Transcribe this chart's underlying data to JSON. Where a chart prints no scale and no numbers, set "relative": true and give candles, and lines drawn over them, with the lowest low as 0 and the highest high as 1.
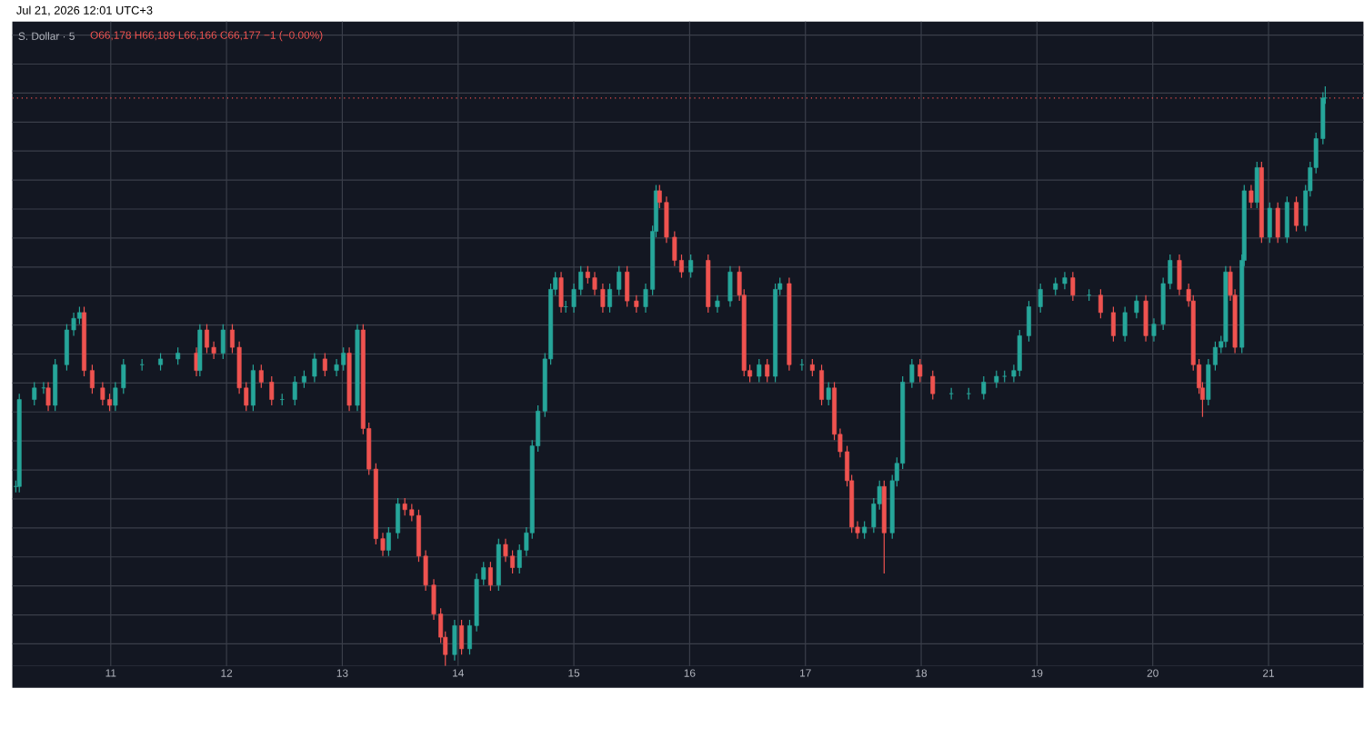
{
  "chart_data": {
    "type": "candlestick",
    "title": "S. Dollar · 5",
    "relative": true,
    "grid": true,
    "tick_labels": "x",
    "annotations": [
      "Jul 21, 2026 12:01 UTC+3",
      "O66,178 H66,189 L66,166 C66,177 −1 (−0.00%)"
    ],
    "xlim": [
      10.15,
      21.82
    ],
    "xticks": [
      11,
      12,
      13,
      14,
      15,
      16,
      17,
      18,
      19,
      20,
      21
    ],
    "ref_lines": [
      {
        "axis": "y",
        "value": 0.98,
        "color": "#ef5350",
        "line_style": "dotted"
      }
    ],
    "x": [
      10.18,
      10.21,
      10.34,
      10.42,
      10.46,
      10.52,
      10.62,
      10.68,
      10.73,
      10.77,
      10.84,
      10.93,
      10.99,
      11.04,
      11.11,
      11.27,
      11.43,
      11.58,
      11.74,
      11.77,
      11.83,
      11.89,
      11.97,
      12.05,
      12.11,
      12.17,
      12.23,
      12.3,
      12.39,
      12.48,
      12.59,
      12.67,
      12.76,
      12.85,
      12.95,
      13.01,
      13.06,
      13.13,
      13.18,
      13.23,
      13.29,
      13.35,
      13.4,
      13.48,
      13.54,
      13.6,
      13.66,
      13.72,
      13.79,
      13.85,
      13.89,
      13.97,
      14.03,
      14.1,
      14.16,
      14.22,
      14.28,
      14.35,
      14.41,
      14.47,
      14.53,
      14.59,
      14.64,
      14.69,
      14.75,
      14.8,
      14.84,
      14.89,
      14.93,
      15.0,
      15.06,
      15.12,
      15.18,
      15.25,
      15.31,
      15.39,
      15.46,
      15.54,
      15.62,
      15.68,
      15.71,
      15.74,
      15.8,
      15.87,
      15.93,
      16.01,
      16.16,
      16.24,
      16.35,
      16.43,
      16.47,
      16.52,
      16.6,
      16.67,
      16.74,
      16.78,
      16.86,
      16.97,
      17.06,
      17.14,
      17.2,
      17.25,
      17.3,
      17.36,
      17.4,
      17.45,
      17.51,
      17.59,
      17.64,
      17.68,
      17.75,
      17.79,
      17.84,
      17.92,
      17.99,
      18.1,
      18.26,
      18.41,
      18.54,
      18.65,
      18.72,
      18.8,
      18.85,
      18.93,
      19.03,
      19.16,
      19.24,
      19.31,
      19.45,
      19.55,
      19.66,
      19.76,
      19.86,
      19.94,
      20.01,
      20.09,
      20.15,
      20.23,
      20.31,
      20.35,
      20.4,
      20.43,
      20.48,
      20.54,
      20.59,
      20.63,
      20.67,
      20.71,
      20.77,
      20.79,
      20.85,
      20.9,
      20.94,
      21.01,
      21.08,
      21.16,
      21.24,
      21.32,
      21.36,
      21.41,
      21.47,
      21.49
    ],
    "ohlc": [
      [
        0.31,
        0.32,
        0.3,
        0.31
      ],
      [
        0.31,
        0.47,
        0.3,
        0.46
      ],
      [
        0.46,
        0.49,
        0.45,
        0.48
      ],
      [
        0.48,
        0.49,
        0.47,
        0.48
      ],
      [
        0.48,
        0.49,
        0.44,
        0.45
      ],
      [
        0.45,
        0.53,
        0.44,
        0.52
      ],
      [
        0.52,
        0.59,
        0.51,
        0.58
      ],
      [
        0.58,
        0.61,
        0.57,
        0.6
      ],
      [
        0.6,
        0.62,
        0.59,
        0.61
      ],
      [
        0.61,
        0.62,
        0.5,
        0.51
      ],
      [
        0.51,
        0.52,
        0.47,
        0.48
      ],
      [
        0.48,
        0.49,
        0.45,
        0.46
      ],
      [
        0.46,
        0.47,
        0.44,
        0.45
      ],
      [
        0.45,
        0.49,
        0.44,
        0.48
      ],
      [
        0.48,
        0.53,
        0.47,
        0.52
      ],
      [
        0.52,
        0.53,
        0.51,
        0.52
      ],
      [
        0.52,
        0.54,
        0.51,
        0.53
      ],
      [
        0.53,
        0.55,
        0.52,
        0.54
      ],
      [
        0.54,
        0.55,
        0.5,
        0.51
      ],
      [
        0.51,
        0.59,
        0.5,
        0.58
      ],
      [
        0.58,
        0.59,
        0.54,
        0.55
      ],
      [
        0.55,
        0.56,
        0.53,
        0.54
      ],
      [
        0.54,
        0.59,
        0.53,
        0.58
      ],
      [
        0.58,
        0.59,
        0.54,
        0.55
      ],
      [
        0.55,
        0.56,
        0.47,
        0.48
      ],
      [
        0.48,
        0.49,
        0.44,
        0.45
      ],
      [
        0.45,
        0.52,
        0.44,
        0.51
      ],
      [
        0.51,
        0.52,
        0.48,
        0.49
      ],
      [
        0.49,
        0.5,
        0.45,
        0.46
      ],
      [
        0.46,
        0.47,
        0.45,
        0.46
      ],
      [
        0.46,
        0.5,
        0.45,
        0.49
      ],
      [
        0.49,
        0.51,
        0.48,
        0.5
      ],
      [
        0.5,
        0.54,
        0.49,
        0.53
      ],
      [
        0.53,
        0.54,
        0.5,
        0.51
      ],
      [
        0.51,
        0.53,
        0.5,
        0.52
      ],
      [
        0.52,
        0.55,
        0.51,
        0.54
      ],
      [
        0.54,
        0.55,
        0.44,
        0.45
      ],
      [
        0.45,
        0.59,
        0.44,
        0.58
      ],
      [
        0.58,
        0.59,
        0.4,
        0.41
      ],
      [
        0.41,
        0.42,
        0.33,
        0.34
      ],
      [
        0.34,
        0.35,
        0.21,
        0.22
      ],
      [
        0.22,
        0.23,
        0.19,
        0.2
      ],
      [
        0.2,
        0.24,
        0.19,
        0.23
      ],
      [
        0.23,
        0.29,
        0.22,
        0.28
      ],
      [
        0.28,
        0.29,
        0.26,
        0.27
      ],
      [
        0.27,
        0.28,
        0.25,
        0.26
      ],
      [
        0.26,
        0.27,
        0.18,
        0.19
      ],
      [
        0.19,
        0.2,
        0.13,
        0.14
      ],
      [
        0.14,
        0.15,
        0.08,
        0.09
      ],
      [
        0.09,
        0.1,
        0.04,
        0.05
      ],
      [
        0.05,
        0.06,
        0,
        0.02
      ],
      [
        0.02,
        0.08,
        0.01,
        0.07
      ],
      [
        0.07,
        0.08,
        0.02,
        0.03
      ],
      [
        0.03,
        0.08,
        0.02,
        0.07
      ],
      [
        0.07,
        0.16,
        0.06,
        0.15
      ],
      [
        0.15,
        0.18,
        0.14,
        0.17
      ],
      [
        0.17,
        0.18,
        0.13,
        0.14
      ],
      [
        0.14,
        0.22,
        0.13,
        0.21
      ],
      [
        0.21,
        0.22,
        0.18,
        0.19
      ],
      [
        0.19,
        0.2,
        0.16,
        0.17
      ],
      [
        0.17,
        0.21,
        0.16,
        0.2
      ],
      [
        0.2,
        0.24,
        0.19,
        0.23
      ],
      [
        0.23,
        0.39,
        0.22,
        0.38
      ],
      [
        0.38,
        0.45,
        0.37,
        0.44
      ],
      [
        0.44,
        0.54,
        0.43,
        0.53
      ],
      [
        0.53,
        0.66,
        0.52,
        0.65
      ],
      [
        0.65,
        0.68,
        0.64,
        0.67
      ],
      [
        0.67,
        0.68,
        0.61,
        0.62
      ],
      [
        0.62,
        0.63,
        0.61,
        0.62
      ],
      [
        0.62,
        0.66,
        0.61,
        0.65
      ],
      [
        0.65,
        0.69,
        0.64,
        0.68
      ],
      [
        0.68,
        0.69,
        0.66,
        0.67
      ],
      [
        0.67,
        0.68,
        0.64,
        0.65
      ],
      [
        0.65,
        0.66,
        0.61,
        0.62
      ],
      [
        0.62,
        0.66,
        0.61,
        0.65
      ],
      [
        0.65,
        0.69,
        0.64,
        0.68
      ],
      [
        0.68,
        0.69,
        0.62,
        0.63
      ],
      [
        0.63,
        0.64,
        0.61,
        0.62
      ],
      [
        0.62,
        0.66,
        0.61,
        0.65
      ],
      [
        0.65,
        0.76,
        0.64,
        0.75
      ],
      [
        0.75,
        0.83,
        0.74,
        0.82
      ],
      [
        0.82,
        0.83,
        0.79,
        0.8
      ],
      [
        0.8,
        0.81,
        0.73,
        0.74
      ],
      [
        0.74,
        0.75,
        0.69,
        0.7
      ],
      [
        0.7,
        0.71,
        0.67,
        0.68
      ],
      [
        0.68,
        0.71,
        0.67,
        0.7
      ],
      [
        0.7,
        0.71,
        0.61,
        0.62
      ],
      [
        0.62,
        0.64,
        0.61,
        0.63
      ],
      [
        0.63,
        0.69,
        0.62,
        0.68
      ],
      [
        0.68,
        0.69,
        0.63,
        0.64
      ],
      [
        0.64,
        0.65,
        0.5,
        0.51
      ],
      [
        0.51,
        0.52,
        0.49,
        0.5
      ],
      [
        0.5,
        0.53,
        0.49,
        0.52
      ],
      [
        0.52,
        0.53,
        0.49,
        0.5
      ],
      [
        0.5,
        0.66,
        0.49,
        0.65
      ],
      [
        0.65,
        0.67,
        0.64,
        0.66
      ],
      [
        0.66,
        0.67,
        0.51,
        0.52
      ],
      [
        0.52,
        0.53,
        0.51,
        0.52
      ],
      [
        0.52,
        0.53,
        0.5,
        0.51
      ],
      [
        0.51,
        0.52,
        0.45,
        0.46
      ],
      [
        0.46,
        0.49,
        0.45,
        0.48
      ],
      [
        0.48,
        0.49,
        0.39,
        0.4
      ],
      [
        0.4,
        0.41,
        0.36,
        0.37
      ],
      [
        0.37,
        0.38,
        0.31,
        0.32
      ],
      [
        0.32,
        0.33,
        0.23,
        0.24
      ],
      [
        0.24,
        0.25,
        0.22,
        0.23
      ],
      [
        0.23,
        0.25,
        0.22,
        0.24
      ],
      [
        0.24,
        0.29,
        0.23,
        0.28
      ],
      [
        0.28,
        0.32,
        0.27,
        0.31
      ],
      [
        0.31,
        0.32,
        0.16,
        0.23
      ],
      [
        0.23,
        0.33,
        0.22,
        0.32
      ],
      [
        0.32,
        0.36,
        0.31,
        0.35
      ],
      [
        0.35,
        0.5,
        0.34,
        0.49
      ],
      [
        0.49,
        0.53,
        0.48,
        0.52
      ],
      [
        0.52,
        0.53,
        0.49,
        0.5
      ],
      [
        0.5,
        0.51,
        0.46,
        0.47
      ],
      [
        0.47,
        0.48,
        0.46,
        0.47
      ],
      [
        0.47,
        0.48,
        0.46,
        0.47
      ],
      [
        0.47,
        0.5,
        0.46,
        0.49
      ],
      [
        0.49,
        0.51,
        0.48,
        0.5
      ],
      [
        0.5,
        0.51,
        0.49,
        0.5
      ],
      [
        0.5,
        0.52,
        0.49,
        0.51
      ],
      [
        0.51,
        0.58,
        0.5,
        0.57
      ],
      [
        0.57,
        0.63,
        0.56,
        0.62
      ],
      [
        0.62,
        0.66,
        0.61,
        0.65
      ],
      [
        0.65,
        0.67,
        0.64,
        0.66
      ],
      [
        0.66,
        0.68,
        0.65,
        0.67
      ],
      [
        0.67,
        0.68,
        0.63,
        0.64
      ],
      [
        0.64,
        0.65,
        0.63,
        0.64
      ],
      [
        0.64,
        0.65,
        0.6,
        0.61
      ],
      [
        0.61,
        0.62,
        0.56,
        0.57
      ],
      [
        0.57,
        0.62,
        0.56,
        0.61
      ],
      [
        0.61,
        0.64,
        0.6,
        0.63
      ],
      [
        0.63,
        0.64,
        0.56,
        0.57
      ],
      [
        0.57,
        0.6,
        0.56,
        0.59
      ],
      [
        0.59,
        0.67,
        0.58,
        0.66
      ],
      [
        0.66,
        0.71,
        0.65,
        0.7
      ],
      [
        0.7,
        0.71,
        0.64,
        0.65
      ],
      [
        0.65,
        0.66,
        0.62,
        0.63
      ],
      [
        0.63,
        0.64,
        0.51,
        0.52
      ],
      [
        0.52,
        0.53,
        0.47,
        0.48
      ],
      [
        0.48,
        0.49,
        0.43,
        0.46
      ],
      [
        0.46,
        0.53,
        0.45,
        0.52
      ],
      [
        0.52,
        0.56,
        0.51,
        0.55
      ],
      [
        0.55,
        0.57,
        0.54,
        0.56
      ],
      [
        0.56,
        0.69,
        0.55,
        0.68
      ],
      [
        0.68,
        0.69,
        0.63,
        0.64
      ],
      [
        0.64,
        0.65,
        0.54,
        0.55
      ],
      [
        0.55,
        0.71,
        0.54,
        0.7
      ],
      [
        0.7,
        0.83,
        0.69,
        0.82
      ],
      [
        0.82,
        0.83,
        0.79,
        0.8
      ],
      [
        0.8,
        0.87,
        0.79,
        0.86
      ],
      [
        0.86,
        0.87,
        0.73,
        0.74
      ],
      [
        0.74,
        0.8,
        0.73,
        0.79
      ],
      [
        0.79,
        0.8,
        0.73,
        0.74
      ],
      [
        0.74,
        0.81,
        0.73,
        0.8
      ],
      [
        0.8,
        0.81,
        0.75,
        0.76
      ],
      [
        0.76,
        0.83,
        0.75,
        0.82
      ],
      [
        0.82,
        0.87,
        0.81,
        0.86
      ],
      [
        0.86,
        0.92,
        0.85,
        0.91
      ],
      [
        0.91,
        0.99,
        0.9,
        0.98
      ],
      [
        0.98,
        1,
        0.97,
        0.98
      ]
    ],
    "colors": [
      "#26a69a",
      "#26a69a",
      "#26a69a",
      "#26a69a",
      "#ef5350",
      "#26a69a",
      "#26a69a",
      "#26a69a",
      "#26a69a",
      "#ef5350",
      "#ef5350",
      "#ef5350",
      "#ef5350",
      "#26a69a",
      "#26a69a",
      "#26a69a",
      "#26a69a",
      "#26a69a",
      "#ef5350",
      "#26a69a",
      "#ef5350",
      "#ef5350",
      "#26a69a",
      "#ef5350",
      "#ef5350",
      "#ef5350",
      "#26a69a",
      "#ef5350",
      "#ef5350",
      "#26a69a",
      "#26a69a",
      "#26a69a",
      "#26a69a",
      "#ef5350",
      "#26a69a",
      "#26a69a",
      "#ef5350",
      "#26a69a",
      "#ef5350",
      "#ef5350",
      "#ef5350",
      "#ef5350",
      "#26a69a",
      "#26a69a",
      "#ef5350",
      "#ef5350",
      "#ef5350",
      "#ef5350",
      "#ef5350",
      "#ef5350",
      "#ef5350",
      "#26a69a",
      "#ef5350",
      "#26a69a",
      "#26a69a",
      "#26a69a",
      "#ef5350",
      "#26a69a",
      "#ef5350",
      "#ef5350",
      "#26a69a",
      "#26a69a",
      "#26a69a",
      "#26a69a",
      "#26a69a",
      "#26a69a",
      "#26a69a",
      "#ef5350",
      "#26a69a",
      "#26a69a",
      "#26a69a",
      "#ef5350",
      "#ef5350",
      "#ef5350",
      "#26a69a",
      "#26a69a",
      "#ef5350",
      "#ef5350",
      "#26a69a",
      "#26a69a",
      "#26a69a",
      "#ef5350",
      "#ef5350",
      "#ef5350",
      "#ef5350",
      "#26a69a",
      "#ef5350",
      "#26a69a",
      "#26a69a",
      "#ef5350",
      "#ef5350",
      "#ef5350",
      "#26a69a",
      "#ef5350",
      "#26a69a",
      "#26a69a",
      "#ef5350",
      "#26a69a",
      "#ef5350",
      "#ef5350",
      "#26a69a",
      "#ef5350",
      "#ef5350",
      "#ef5350",
      "#ef5350",
      "#ef5350",
      "#26a69a",
      "#26a69a",
      "#26a69a",
      "#ef5350",
      "#26a69a",
      "#26a69a",
      "#26a69a",
      "#26a69a",
      "#ef5350",
      "#ef5350",
      "#26a69a",
      "#26a69a",
      "#26a69a",
      "#26a69a",
      "#26a69a",
      "#26a69a",
      "#26a69a",
      "#26a69a",
      "#26a69a",
      "#26a69a",
      "#26a69a",
      "#ef5350",
      "#26a69a",
      "#ef5350",
      "#ef5350",
      "#26a69a",
      "#26a69a",
      "#ef5350",
      "#26a69a",
      "#26a69a",
      "#26a69a",
      "#ef5350",
      "#ef5350",
      "#ef5350",
      "#ef5350",
      "#ef5350",
      "#26a69a",
      "#26a69a",
      "#26a69a",
      "#26a69a",
      "#ef5350",
      "#ef5350",
      "#26a69a",
      "#26a69a",
      "#ef5350",
      "#26a69a",
      "#ef5350",
      "#26a69a",
      "#ef5350",
      "#26a69a",
      "#ef5350",
      "#26a69a",
      "#26a69a",
      "#26a69a",
      "#26a69a",
      "#26a69a"
    ]
  }
}
